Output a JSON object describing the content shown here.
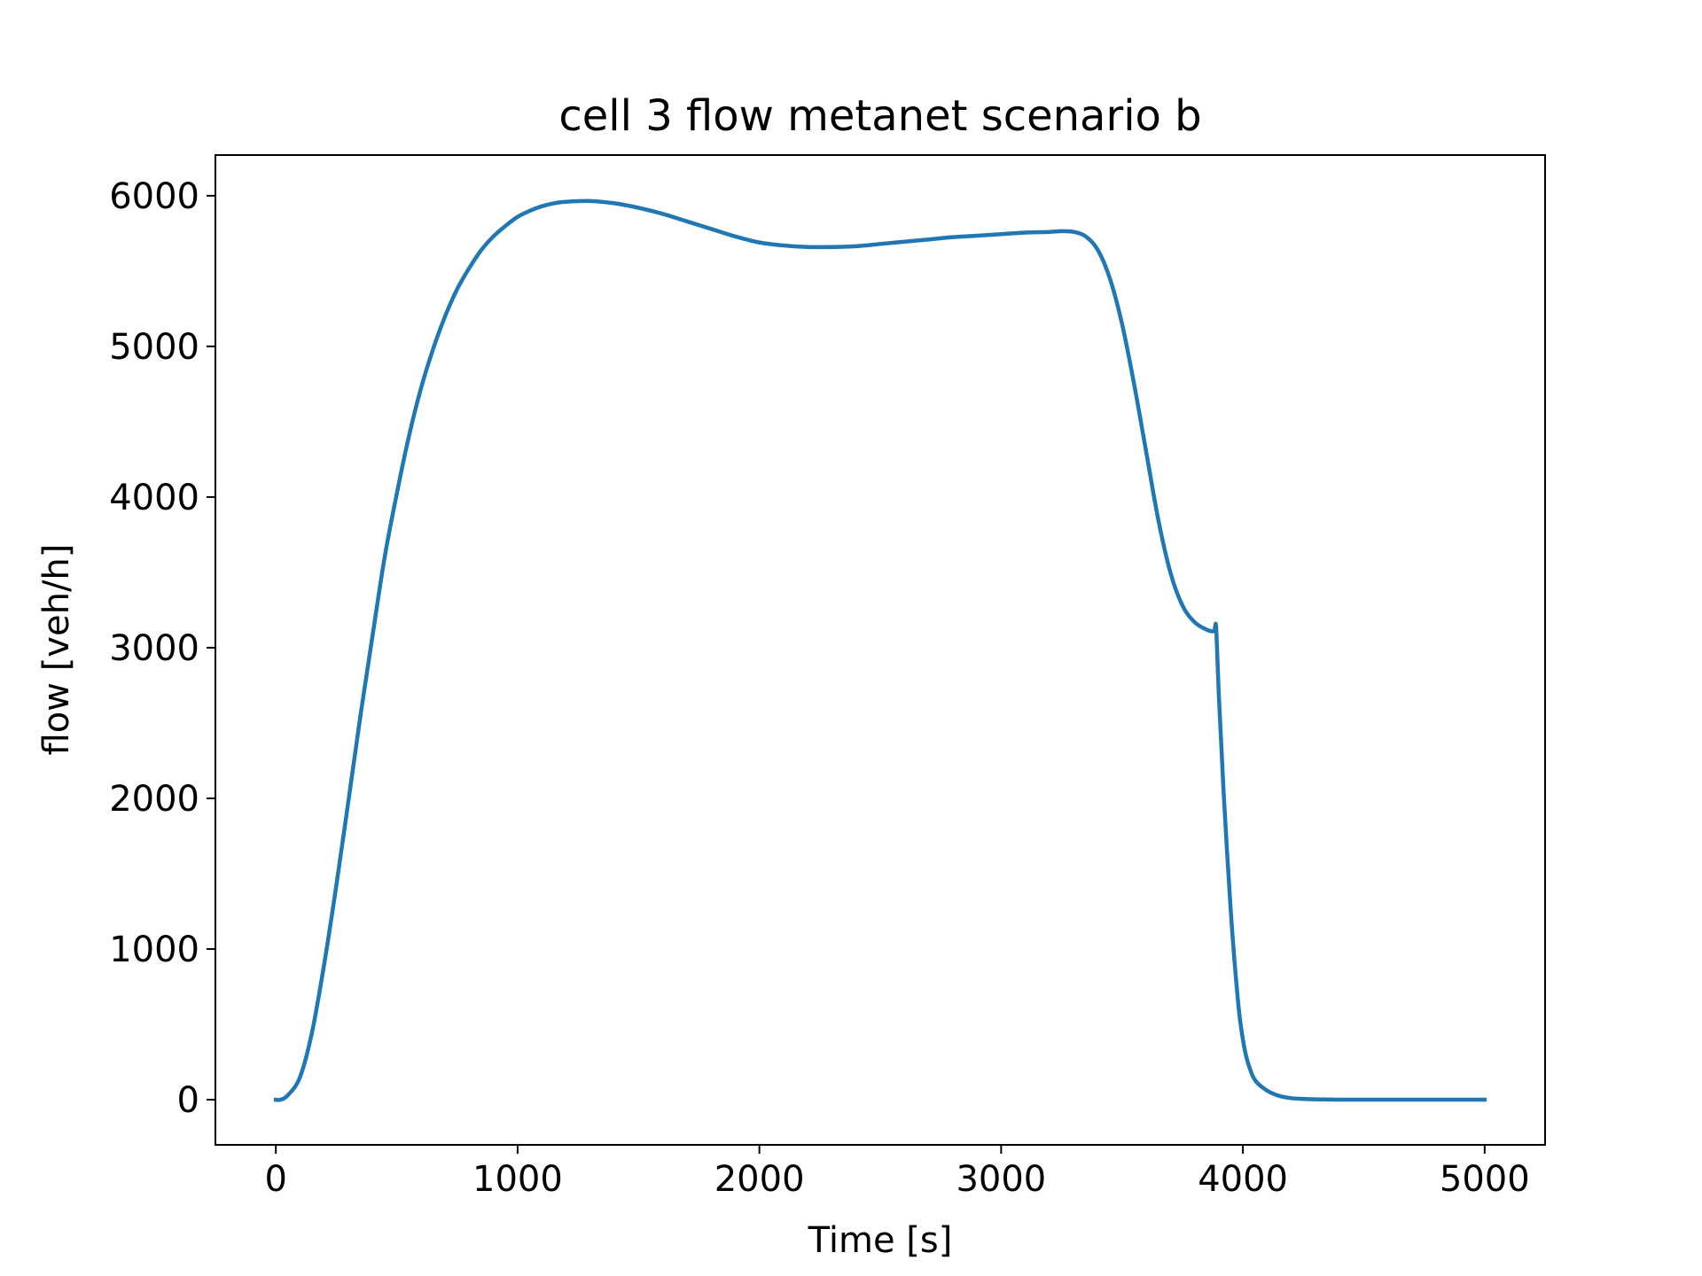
{
  "chart_data": {
    "type": "line",
    "title": "cell 3 flow metanet scenario b",
    "xlabel": "Time [s]",
    "ylabel": "flow [veh/h]",
    "xlim": [
      -250,
      5250
    ],
    "ylim": [
      -300,
      6270
    ],
    "x_ticks": [
      0,
      1000,
      2000,
      3000,
      4000,
      5000
    ],
    "x_tick_labels": [
      "0",
      "1000",
      "2000",
      "3000",
      "4000",
      "5000"
    ],
    "y_ticks": [
      0,
      1000,
      2000,
      3000,
      4000,
      5000,
      6000
    ],
    "y_tick_labels": [
      "0",
      "1000",
      "2000",
      "3000",
      "4000",
      "5000",
      "6000"
    ],
    "grid": false,
    "legend": "none",
    "line_color": "#1f77b4",
    "series": [
      {
        "x": [
          0,
          20,
          50,
          100,
          150,
          200,
          250,
          300,
          350,
          400,
          450,
          500,
          550,
          600,
          650,
          700,
          750,
          800,
          850,
          900,
          950,
          1000,
          1050,
          1100,
          1150,
          1200,
          1300,
          1400,
          1500,
          1600,
          1700,
          1800,
          1900,
          2000,
          2100,
          2200,
          2300,
          2400,
          2500,
          2600,
          2700,
          2800,
          2900,
          3000,
          3100,
          3200,
          3250,
          3300,
          3350,
          3400,
          3450,
          3500,
          3550,
          3600,
          3650,
          3700,
          3750,
          3800,
          3850,
          3880,
          3885,
          3890,
          3900,
          3920,
          3950,
          3980,
          4000,
          4020,
          4050,
          4100,
          4150,
          4200,
          4250,
          4300,
          4400,
          4500,
          4700,
          5000
        ],
        "y": [
          0,
          0,
          30,
          150,
          450,
          900,
          1420,
          1980,
          2550,
          3080,
          3600,
          4020,
          4400,
          4720,
          4980,
          5200,
          5380,
          5520,
          5640,
          5730,
          5800,
          5860,
          5900,
          5930,
          5950,
          5960,
          5965,
          5950,
          5920,
          5880,
          5830,
          5780,
          5730,
          5690,
          5670,
          5660,
          5660,
          5665,
          5680,
          5695,
          5710,
          5725,
          5735,
          5745,
          5755,
          5760,
          5765,
          5760,
          5730,
          5640,
          5450,
          5150,
          4750,
          4300,
          3850,
          3500,
          3280,
          3170,
          3120,
          3110,
          3140,
          3120,
          2700,
          2050,
          1250,
          650,
          400,
          250,
          130,
          60,
          25,
          10,
          5,
          2,
          0,
          0,
          0,
          0
        ]
      }
    ]
  }
}
